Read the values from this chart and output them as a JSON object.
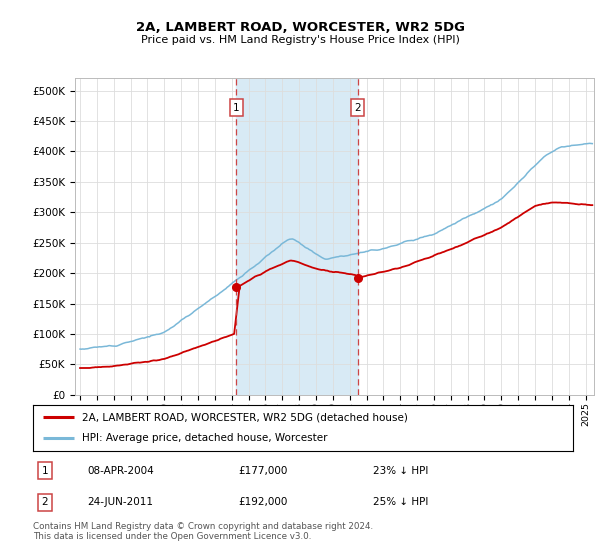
{
  "title": "2A, LAMBERT ROAD, WORCESTER, WR2 5DG",
  "subtitle": "Price paid vs. HM Land Registry's House Price Index (HPI)",
  "ylim": [
    0,
    520000
  ],
  "yticks": [
    0,
    50000,
    100000,
    150000,
    200000,
    250000,
    300000,
    350000,
    400000,
    450000,
    500000
  ],
  "xlim_start": 1994.7,
  "xlim_end": 2025.5,
  "purchase1_x": 2004.27,
  "purchase1_y": 177000,
  "purchase2_x": 2011.47,
  "purchase2_y": 192000,
  "purchase1_date": "08-APR-2004",
  "purchase1_price": "£177,000",
  "purchase1_hpi": "23% ↓ HPI",
  "purchase2_date": "24-JUN-2011",
  "purchase2_price": "£192,000",
  "purchase2_hpi": "25% ↓ HPI",
  "line_color_hpi": "#7ab8d8",
  "line_color_price": "#cc0000",
  "vline_color": "#cc4444",
  "band_color": "#d8eaf5",
  "legend_label_price": "2A, LAMBERT ROAD, WORCESTER, WR2 5DG (detached house)",
  "legend_label_hpi": "HPI: Average price, detached house, Worcester",
  "footer": "Contains HM Land Registry data © Crown copyright and database right 2024.\nThis data is licensed under the Open Government Licence v3.0.",
  "background_color": "#ffffff",
  "grid_color": "#dddddd"
}
